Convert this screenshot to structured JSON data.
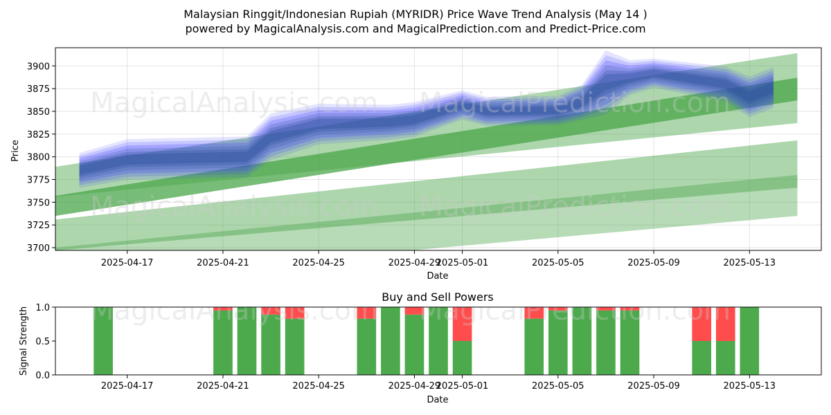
{
  "title_line1": "Malaysian Ringgit/Indonesian Rupiah (MYRIDR) Price Wave Trend Analysis (May 14 )",
  "title_line2": "powered by MagicalAnalysis.com and MagicalPrediction.com and Predict-Price.com",
  "watermarks": [
    "MagicalAnalysis.com",
    "MagicalPrediction.com"
  ],
  "colors": {
    "blue_band": "#4040ff",
    "blue_dark": "#2a4e9a",
    "green_band": "#4aa54a",
    "green_bar": "#4caa4c",
    "red_bar": "#ff4d4d"
  },
  "chart_data": [
    {
      "type": "area",
      "xlabel": "Date",
      "ylabel": "Price",
      "ylim": [
        3697,
        3920
      ],
      "yticks": [
        3700,
        3725,
        3750,
        3775,
        3800,
        3825,
        3850,
        3875,
        3900
      ],
      "xticks": [
        {
          "date": "2025-04-17",
          "label": "2025-04-17"
        },
        {
          "date": "2025-04-21",
          "label": "2025-04-21"
        },
        {
          "date": "2025-04-25",
          "label": "2025-04-25"
        },
        {
          "date": "2025-04-29",
          "label": "2025-04-29"
        },
        {
          "date": "2025-05-01",
          "label": "2025-05-01"
        },
        {
          "date": "2025-05-05",
          "label": "2025-05-05"
        },
        {
          "date": "2025-05-09",
          "label": "2025-05-09"
        },
        {
          "date": "2025-05-13",
          "label": "2025-05-13"
        }
      ],
      "xlim": [
        "2025-04-14",
        "2025-05-16"
      ],
      "grid": true,
      "price_wave": {
        "dates": [
          "2025-04-15",
          "2025-04-17",
          "2025-04-22",
          "2025-04-23",
          "2025-04-25",
          "2025-04-28",
          "2025-04-29",
          "2025-05-01",
          "2025-05-02",
          "2025-05-05",
          "2025-05-06",
          "2025-05-07",
          "2025-05-08",
          "2025-05-09",
          "2025-05-12",
          "2025-05-13",
          "2025-05-14"
        ],
        "center": [
          3785,
          3797,
          3800,
          3822,
          3836,
          3838,
          3841,
          3857,
          3850,
          3851,
          3860,
          3882,
          3887,
          3892,
          3880,
          3866,
          3876
        ],
        "spread": [
          12,
          14,
          14,
          16,
          14,
          12,
          12,
          10,
          10,
          10,
          12,
          22,
          12,
          10,
          12,
          14,
          14
        ]
      },
      "trend_bands": [
        {
          "start": [
            "2025-04-14",
            3756,
            3789
          ],
          "end": [
            "2025-05-15",
            3837,
            3914
          ],
          "opacity": 0.45
        },
        {
          "start": [
            "2025-04-14",
            3735,
            3757
          ],
          "end": [
            "2025-05-15",
            3862,
            3887
          ],
          "opacity": 0.75
        },
        {
          "start": [
            "2025-04-14",
            3697,
            3731
          ],
          "end": [
            "2025-05-15",
            3766,
            3818
          ],
          "opacity": 0.45
        },
        {
          "start": [
            "2025-04-14",
            3662,
            3700
          ],
          "end": [
            "2025-05-15",
            3735,
            3780
          ],
          "opacity": 0.4
        }
      ]
    },
    {
      "type": "bar",
      "title": "Buy and Sell Powers",
      "xlabel": "Date",
      "ylabel": "Signal Strength",
      "ylim": [
        0,
        1
      ],
      "yticks": [
        {
          "v": 0,
          "label": "0.0"
        },
        {
          "v": 0.5,
          "label": "0.5"
        },
        {
          "v": 1,
          "label": "1.0"
        }
      ],
      "xticks": [
        {
          "date": "2025-04-17",
          "label": "2025-04-17"
        },
        {
          "date": "2025-04-21",
          "label": "2025-04-21"
        },
        {
          "date": "2025-04-25",
          "label": "2025-04-25"
        },
        {
          "date": "2025-04-29",
          "label": "2025-04-29"
        },
        {
          "date": "2025-05-01",
          "label": "2025-05-01"
        },
        {
          "date": "2025-05-05",
          "label": "2025-05-05"
        },
        {
          "date": "2025-05-09",
          "label": "2025-05-09"
        },
        {
          "date": "2025-05-13",
          "label": "2025-05-13"
        }
      ],
      "xlim": [
        "2025-04-14",
        "2025-05-16"
      ],
      "series": [
        {
          "key": "buy"
        },
        {
          "key": "sell"
        }
      ],
      "bars": [
        {
          "date": "2025-04-16",
          "buy": 1.0,
          "sell": 0.0
        },
        {
          "date": "2025-04-21",
          "buy": 0.95,
          "sell": 0.05
        },
        {
          "date": "2025-04-22",
          "buy": 1.0,
          "sell": 0.0
        },
        {
          "date": "2025-04-23",
          "buy": 0.89,
          "sell": 0.11
        },
        {
          "date": "2025-04-24",
          "buy": 0.83,
          "sell": 0.17
        },
        {
          "date": "2025-04-27",
          "buy": 0.83,
          "sell": 0.17
        },
        {
          "date": "2025-04-28",
          "buy": 1.0,
          "sell": 0.0
        },
        {
          "date": "2025-04-29",
          "buy": 0.89,
          "sell": 0.11
        },
        {
          "date": "2025-04-30",
          "buy": 1.0,
          "sell": 0.0
        },
        {
          "date": "2025-05-01",
          "buy": 0.5,
          "sell": 0.5
        },
        {
          "date": "2025-05-04",
          "buy": 0.83,
          "sell": 0.17
        },
        {
          "date": "2025-05-05",
          "buy": 0.95,
          "sell": 0.05
        },
        {
          "date": "2025-05-06",
          "buy": 1.0,
          "sell": 0.0
        },
        {
          "date": "2025-05-07",
          "buy": 0.95,
          "sell": 0.05
        },
        {
          "date": "2025-05-08",
          "buy": 0.95,
          "sell": 0.05
        },
        {
          "date": "2025-05-11",
          "buy": 0.5,
          "sell": 0.5
        },
        {
          "date": "2025-05-12",
          "buy": 0.5,
          "sell": 0.5
        },
        {
          "date": "2025-05-13",
          "buy": 1.0,
          "sell": 0.0
        }
      ]
    }
  ]
}
